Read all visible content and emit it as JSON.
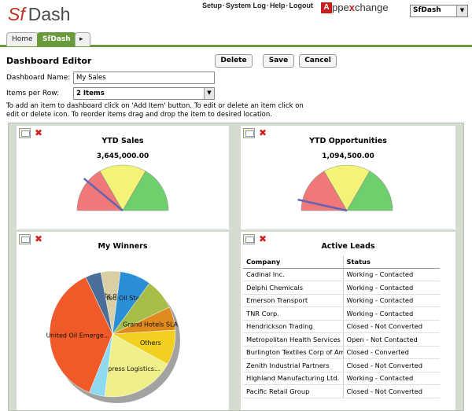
{
  "header": {
    "logo_sf": "Sf",
    "logo_dash": "Dash",
    "links": [
      "Setup",
      "System Log",
      "Help",
      "Logout"
    ],
    "appexchange_letter": "A",
    "appexchange_word_a": "ppe",
    "appexchange_word_x": "x",
    "appexchange_word_b": "change",
    "app_selected": "SfDash"
  },
  "tabs": [
    {
      "label": "Home",
      "active": false
    },
    {
      "label": "SfDash",
      "active": true
    },
    {
      "label": "▸",
      "active": false
    }
  ],
  "editor": {
    "title": "Dashboard Editor",
    "delete_label": "Delete",
    "save_label": "Save",
    "cancel_label": "Cancel",
    "name_label": "Dashboard Name:",
    "name_value": "My Sales",
    "rows_label": "Items per Row:",
    "rows_value": "2 Items",
    "help_text": "To add an item to dashboard click on 'Add Item' button. To edit or delete an item click on edit or delete icon. To reorder items drag and drop the item to desired location."
  },
  "colors": {
    "tab_green": "#6a9b3a",
    "gauge_red": "#f06a6a",
    "gauge_yellow": "#f2f26a",
    "gauge_green": "#5ecc5e",
    "needle": "#6464b4"
  },
  "chart_data": [
    {
      "type": "gauge",
      "title": "YTD Sales",
      "value_label": "3,645,000.00",
      "bands": [
        "red",
        "yellow",
        "green"
      ],
      "needle_fraction": 0.22
    },
    {
      "type": "gauge",
      "title": "YTD Opportunities",
      "value_label": "1,094,500.00",
      "bands": [
        "red",
        "yellow",
        "green"
      ],
      "needle_fraction": 0.07
    },
    {
      "type": "pie",
      "title": "My Winners",
      "slices": [
        {
          "label": "University of AZ SLA",
          "value": 5,
          "color": "#d8cfa4"
        },
        {
          "label": "United Oil Standb...",
          "value": 8,
          "color": "#2b8fd8"
        },
        {
          "label": "",
          "value": 8,
          "color": "#a6be48"
        },
        {
          "label": "Grand Hotels SLA",
          "value": 6,
          "color": "#e08a1e"
        },
        {
          "label": "Others",
          "value": 9,
          "color": "#f2d020"
        },
        {
          "label": "Express Logistics...",
          "value": 19,
          "color": "#f0f08a"
        },
        {
          "label": "",
          "value": 4,
          "color": "#8ed8f0"
        },
        {
          "label": "United Oil Emerge...",
          "value": 37,
          "color": "#f05a28"
        },
        {
          "label": "",
          "value": 4,
          "color": "#4a6e9a"
        }
      ]
    },
    {
      "type": "table",
      "title": "Active Leads",
      "columns": [
        "Company",
        "Status"
      ],
      "rows": [
        [
          "Cadinal Inc.",
          "Working - Contacted"
        ],
        [
          "Delphi Chemicals",
          "Working - Contacted"
        ],
        [
          "Emerson Transport",
          "Working - Contacted"
        ],
        [
          "TNR Corp.",
          "Working - Contacted"
        ],
        [
          "Hendrickson Trading",
          "Closed - Not Converted"
        ],
        [
          "Metropolitan Health Services",
          "Open - Not Contacted"
        ],
        [
          "Burlington Textiles Corp of America",
          "Closed - Converted"
        ],
        [
          "Zenith Industrial Partners",
          "Closed - Not Converted"
        ],
        [
          "Highland Manufacturing Ltd.",
          "Working - Contacted"
        ],
        [
          "Pacific Retail Group",
          "Closed - Not Converted"
        ]
      ]
    }
  ]
}
